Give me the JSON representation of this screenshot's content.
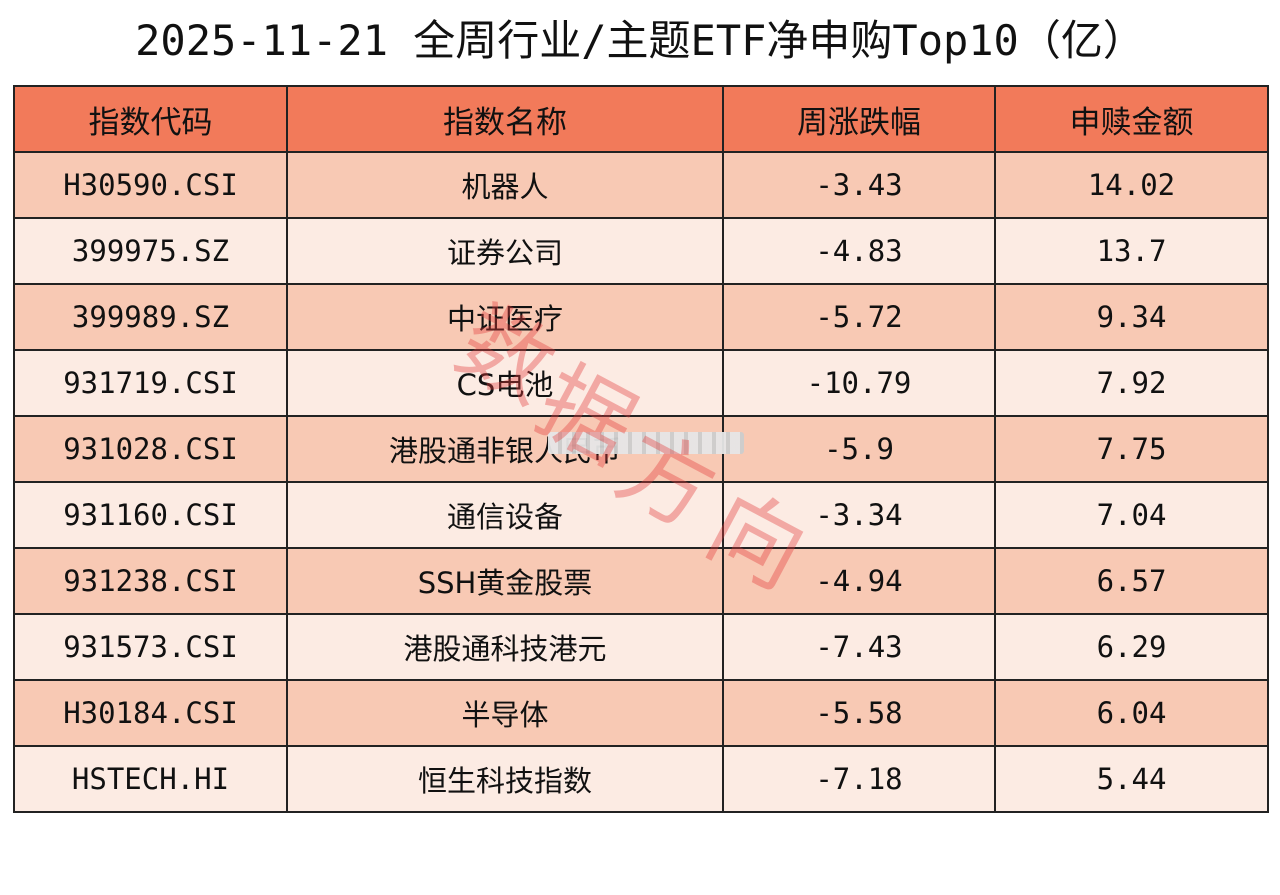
{
  "title": "2025-11-21 全周行业/主题ETF净申购Top10（亿）",
  "table": {
    "headers": [
      "指数代码",
      "指数名称",
      "周涨跌幅",
      "申赎金额"
    ],
    "rows": [
      {
        "code": "H30590.CSI",
        "name": "机器人",
        "change": "-3.43",
        "amount": "14.02"
      },
      {
        "code": "399975.SZ",
        "name": "证券公司",
        "change": "-4.83",
        "amount": "13.7"
      },
      {
        "code": "399989.SZ",
        "name": "中证医疗",
        "change": "-5.72",
        "amount": "9.34"
      },
      {
        "code": "931719.CSI",
        "name": "CS电池",
        "change": "-10.79",
        "amount": "7.92"
      },
      {
        "code": "931028.CSI",
        "name": "港股通非银人民币",
        "change": "-5.9",
        "amount": "7.75"
      },
      {
        "code": "931160.CSI",
        "name": "通信设备",
        "change": "-3.34",
        "amount": "7.04"
      },
      {
        "code": "931238.CSI",
        "name": "SSH黄金股票",
        "change": "-4.94",
        "amount": "6.57"
      },
      {
        "code": "931573.CSI",
        "name": "港股通科技港元",
        "change": "-7.43",
        "amount": "6.29"
      },
      {
        "code": "H30184.CSI",
        "name": "半导体",
        "change": "-5.58",
        "amount": "6.04"
      },
      {
        "code": "HSTECH.HI",
        "name": "恒生科技指数",
        "change": "-7.18",
        "amount": "5.44"
      }
    ]
  },
  "watermark": {
    "chars": [
      "数",
      "据",
      "方",
      "向"
    ],
    "color": "#e13c3c"
  },
  "colors": {
    "header_bg": "#f27a5a",
    "row_odd_bg": "#f8c9b4",
    "row_even_bg": "#fcebe3",
    "border": "#222222"
  }
}
